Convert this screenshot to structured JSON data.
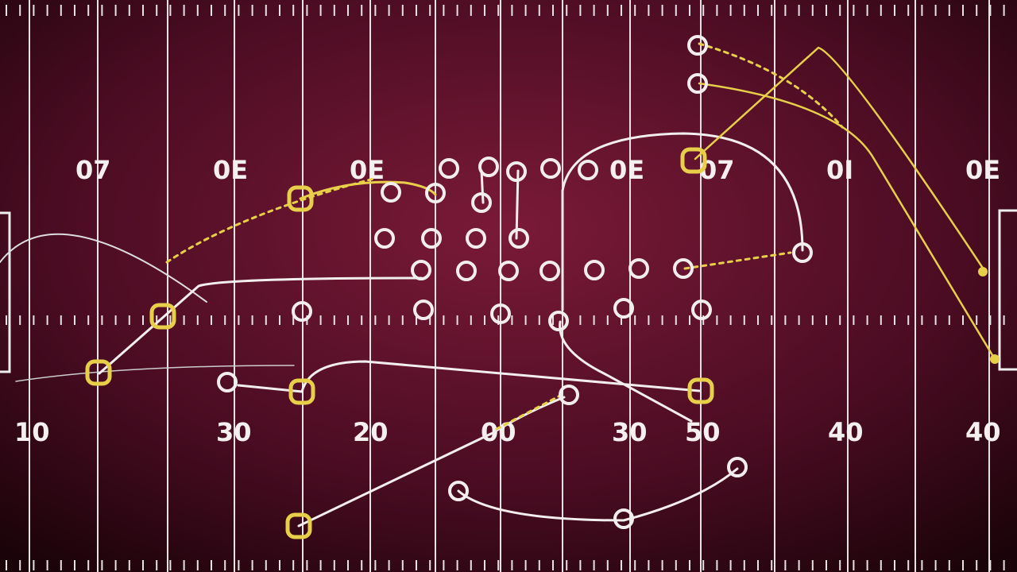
{
  "colors": {
    "field_center": "#7a1a38",
    "field_edge": "#1a0309",
    "line": "#e8e2e4",
    "route_white": "#f2eeee",
    "route_yellow": "#e8cf4a"
  },
  "yard_numbers_top": [
    "07",
    "0E",
    "0E",
    "0E",
    "07",
    "0I",
    "0E"
  ],
  "yard_numbers_bottom": [
    "10",
    "30",
    "20",
    "00",
    "30",
    "50",
    "40",
    "40"
  ]
}
